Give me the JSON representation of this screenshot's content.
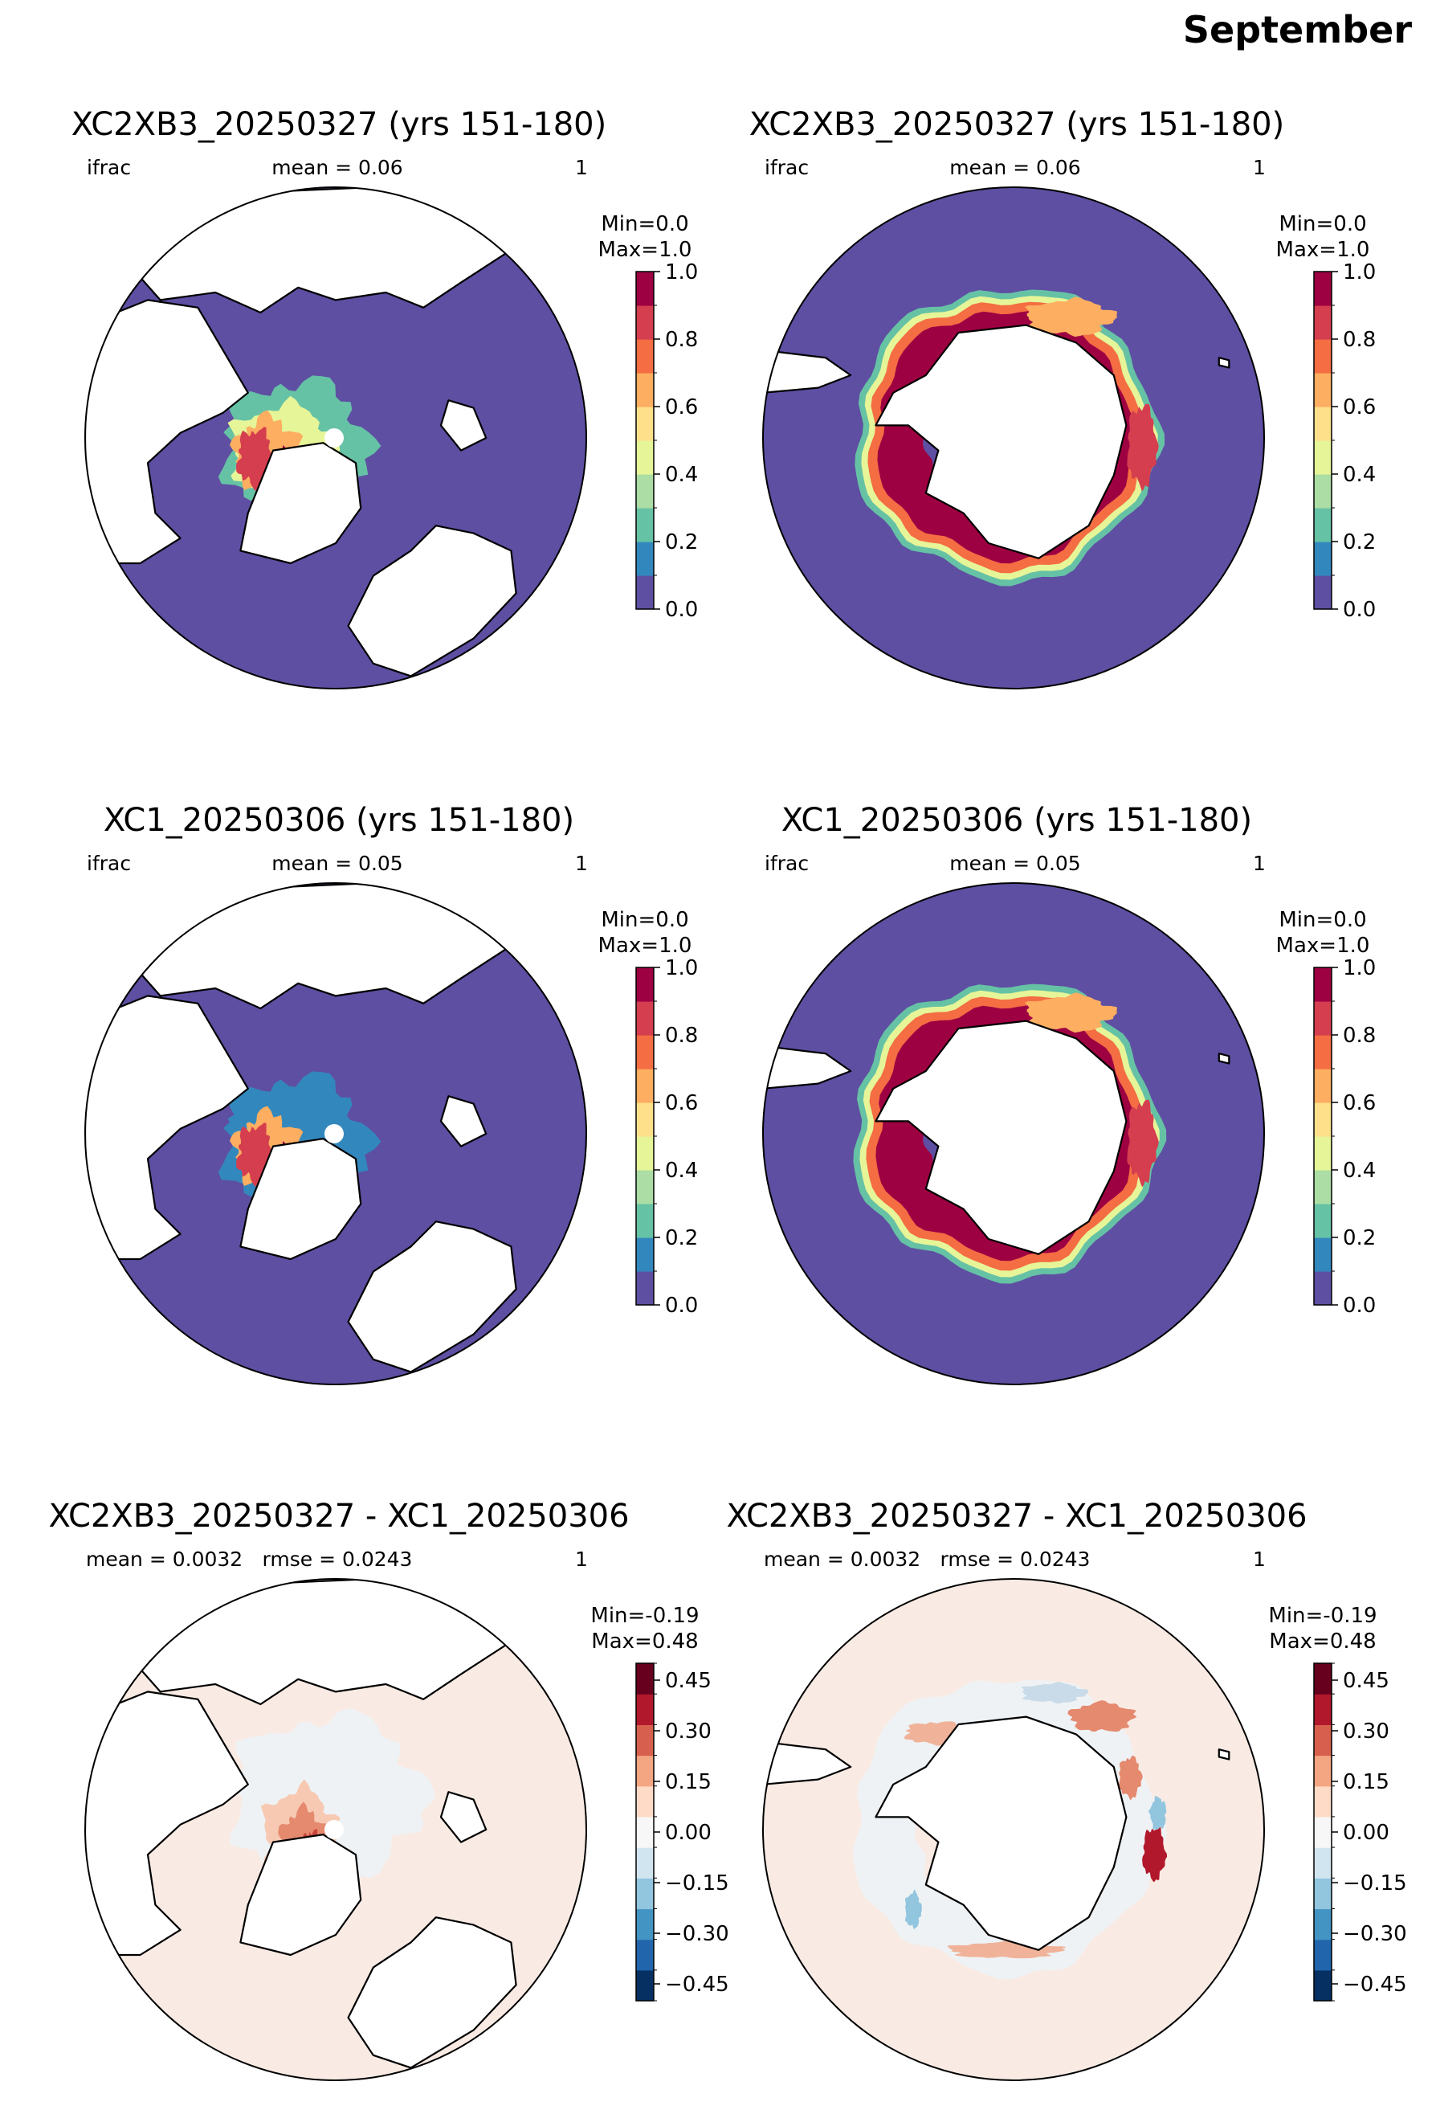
{
  "figure": {
    "suptitle": "September"
  },
  "colormaps": {
    "ifrac": [
      "#5e4fa2",
      "#3288bd",
      "#66c2a5",
      "#abdda4",
      "#e6f598",
      "#fee08b",
      "#fdae61",
      "#f46d43",
      "#d53e4f",
      "#9e0142"
    ],
    "diff": [
      "#053061",
      "#2166ac",
      "#4393c3",
      "#92c5de",
      "#d1e5f0",
      "#f7f7f7",
      "#fddbc7",
      "#f4a582",
      "#d6604d",
      "#b2182b",
      "#67001f"
    ],
    "land": "#ffffff",
    "coast": "#000000"
  },
  "chart_data": [
    {
      "type": "heatmap",
      "projection": "north-polar-stereographic",
      "region": "Arctic",
      "title": "XC2XB3_20250327 (yrs 151-180)",
      "left_label": "ifrac",
      "center_label": "mean = 0.06",
      "right_label": "1",
      "cbar_minmax": "Min=0.0\nMax=1.0",
      "colorbar": {
        "min": 0.0,
        "max": 1.0,
        "ticks": [
          0.0,
          0.2,
          0.4,
          0.6,
          0.8,
          1.0
        ],
        "tick_labels": [
          "0.0",
          "0.2",
          "0.4",
          "0.6",
          "0.8",
          "1.0"
        ]
      },
      "mean": 0.06,
      "min": 0.0,
      "max": 1.0,
      "summary": {
        "ice_max_value": 1.0,
        "open_ocean_value": 0.0
      }
    },
    {
      "type": "heatmap",
      "projection": "south-polar-stereographic",
      "region": "Antarctic",
      "title": "XC2XB3_20250327 (yrs 151-180)",
      "left_label": "ifrac",
      "center_label": "mean = 0.06",
      "right_label": "1",
      "cbar_minmax": "Min=0.0\nMax=1.0",
      "colorbar": {
        "min": 0.0,
        "max": 1.0,
        "ticks": [
          0.0,
          0.2,
          0.4,
          0.6,
          0.8,
          1.0
        ],
        "tick_labels": [
          "0.0",
          "0.2",
          "0.4",
          "0.6",
          "0.8",
          "1.0"
        ]
      },
      "mean": 0.06,
      "min": 0.0,
      "max": 1.0,
      "summary": {
        "ice_max_value": 1.0,
        "open_ocean_value": 0.0
      }
    },
    {
      "type": "heatmap",
      "projection": "north-polar-stereographic",
      "region": "Arctic",
      "title": "XC1_20250306 (yrs 151-180)",
      "left_label": "ifrac",
      "center_label": "mean = 0.05",
      "right_label": "1",
      "cbar_minmax": "Min=0.0\nMax=1.0",
      "colorbar": {
        "min": 0.0,
        "max": 1.0,
        "ticks": [
          0.0,
          0.2,
          0.4,
          0.6,
          0.8,
          1.0
        ],
        "tick_labels": [
          "0.0",
          "0.2",
          "0.4",
          "0.6",
          "0.8",
          "1.0"
        ]
      },
      "mean": 0.05,
      "min": 0.0,
      "max": 1.0,
      "summary": {
        "ice_max_value": 1.0,
        "open_ocean_value": 0.0
      }
    },
    {
      "type": "heatmap",
      "projection": "south-polar-stereographic",
      "region": "Antarctic",
      "title": "XC1_20250306 (yrs 151-180)",
      "left_label": "ifrac",
      "center_label": "mean = 0.05",
      "right_label": "1",
      "cbar_minmax": "Min=0.0\nMax=1.0",
      "colorbar": {
        "min": 0.0,
        "max": 1.0,
        "ticks": [
          0.0,
          0.2,
          0.4,
          0.6,
          0.8,
          1.0
        ],
        "tick_labels": [
          "0.0",
          "0.2",
          "0.4",
          "0.6",
          "0.8",
          "1.0"
        ]
      },
      "mean": 0.05,
      "min": 0.0,
      "max": 1.0,
      "summary": {
        "ice_max_value": 1.0,
        "open_ocean_value": 0.0
      }
    },
    {
      "type": "heatmap",
      "projection": "north-polar-stereographic",
      "region": "Arctic",
      "title": "XC2XB3_20250327 - XC1_20250306",
      "left_label": "mean = 0.0032",
      "center_label": "rmse = 0.0243",
      "right_label": "1",
      "cbar_minmax": "Min=-0.19\nMax=0.48",
      "colorbar": {
        "min": -0.5,
        "max": 0.5,
        "ticks": [
          -0.45,
          -0.3,
          -0.15,
          0.0,
          0.15,
          0.3,
          0.45
        ],
        "tick_labels": [
          "−0.45",
          "−0.30",
          "−0.15",
          "0.00",
          "0.15",
          "0.30",
          "0.45"
        ]
      },
      "mean": 0.0032,
      "rmse": 0.0243,
      "min": -0.19,
      "max": 0.48
    },
    {
      "type": "heatmap",
      "projection": "south-polar-stereographic",
      "region": "Antarctic",
      "title": "XC2XB3_20250327 - XC1_20250306",
      "left_label": "mean = 0.0032",
      "center_label": "rmse = 0.0243",
      "right_label": "1",
      "cbar_minmax": "Min=-0.19\nMax=0.48",
      "colorbar": {
        "min": -0.5,
        "max": 0.5,
        "ticks": [
          -0.45,
          -0.3,
          -0.15,
          0.0,
          0.15,
          0.3,
          0.45
        ],
        "tick_labels": [
          "−0.45",
          "−0.30",
          "−0.15",
          "0.00",
          "0.15",
          "0.30",
          "0.45"
        ]
      },
      "mean": 0.0032,
      "rmse": 0.0243,
      "min": -0.19,
      "max": 0.48
    }
  ]
}
